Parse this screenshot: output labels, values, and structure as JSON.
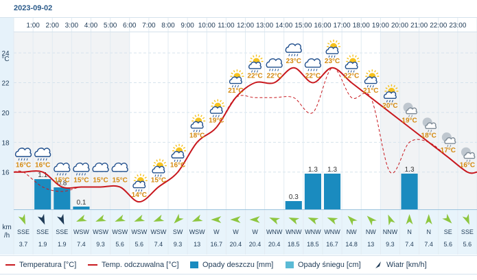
{
  "date": "2023-09-02",
  "hours": [
    "1:00",
    "2:00",
    "3:00",
    "4:00",
    "5:00",
    "6:00",
    "7:00",
    "8:00",
    "9:00",
    "10:00",
    "11:00",
    "12:00",
    "13:00",
    "14:00",
    "15:00",
    "16:00",
    "17:00",
    "18:00",
    "19:00",
    "20:00",
    "21:00",
    "22:00",
    "23:00"
  ],
  "chart_data": {
    "type": "line",
    "x": [
      0,
      1,
      2,
      3,
      4,
      5,
      6,
      7,
      8,
      9,
      10,
      11,
      12,
      13,
      14,
      15,
      16,
      17,
      18,
      19,
      20,
      21,
      22,
      23
    ],
    "unit_label": "°C",
    "y_ticks": [
      16,
      18,
      20,
      22,
      24
    ],
    "ylim": [
      13.5,
      26.4
    ],
    "series": [
      {
        "name": "Temperatura [°C]",
        "color": "#c8181e",
        "values": [
          16,
          16,
          15,
          15,
          15,
          15,
          14,
          15,
          16,
          18,
          19,
          21,
          22,
          22,
          23,
          22,
          23,
          22,
          21,
          20,
          19,
          18,
          17,
          16
        ]
      },
      {
        "name": "Temp. odczuwalna [°C]",
        "color": "#c8181e",
        "dashed": true,
        "values": [
          16,
          15,
          14.7,
          15,
          15,
          15,
          14,
          15,
          16,
          18,
          19,
          21,
          21,
          21,
          21,
          20,
          23,
          21,
          21,
          16,
          18,
          18,
          17,
          16
        ]
      }
    ],
    "temp_labels": [
      "16°C",
      "16°C",
      "15°C",
      "15°C",
      "15°C",
      "15°C",
      "14°C",
      "15°C",
      "16°C",
      "18°C",
      "19°C",
      "21°C",
      "22°C",
      "22°C",
      "23°C",
      "22°C",
      "23°C",
      "22°C",
      "21°C",
      "20°C",
      "19°C",
      "18°C",
      "17°C",
      "16°C"
    ],
    "rain": {
      "name": "Opady deszczu [mm]",
      "color": "#1a8bbf",
      "values": [
        0,
        1.1,
        0.8,
        0.1,
        0,
        0,
        0,
        0,
        0,
        0,
        0,
        0,
        0,
        0,
        0.3,
        1.3,
        1.3,
        0,
        0,
        0,
        1.3,
        0,
        0,
        0
      ],
      "labels": [
        "",
        "1.1",
        "0.8",
        "0.1",
        "",
        "",
        "",
        "",
        "",
        "",
        "",
        "",
        "",
        "",
        "0.3",
        "1.3",
        "1.3",
        "",
        "",
        "",
        "1.3",
        "",
        "",
        ""
      ]
    },
    "snow": {
      "name": "Opady śniegu [cm]",
      "color": "#5bbad5"
    }
  },
  "weather_icons": [
    "rain-cloud",
    "rain-cloud",
    "rain-cloud",
    "rain-cloud",
    "cloud",
    "cloud",
    "sun-cloud-rain",
    "sun-cloud-rain",
    "sun-cloud-rain",
    "sun-cloud-rain",
    "sun-cloud-rain",
    "sun-cloud-rain",
    "sun-cloud-rain",
    "rain-cloud",
    "rain-cloud",
    "rain-cloud",
    "sun-cloud-rain",
    "sun-cloud-rain",
    "sun-cloud-rain",
    "sun-cloud-rain",
    "moon-cloud",
    "moon-cloud",
    "moon-cloud",
    "moon-cloud"
  ],
  "wind": {
    "axis_label_1": "km",
    "axis_label_2": "/h",
    "directions": [
      "SSE",
      "SSE",
      "SSE",
      "WSW",
      "WSW",
      "WSW",
      "WSW",
      "WSW",
      "SW",
      "WSW",
      "W",
      "W",
      "W",
      "WNW",
      "WNW",
      "WNW",
      "WNW",
      "NW",
      "NW",
      "NNW",
      "N",
      "N",
      "SE",
      "SSE"
    ],
    "speeds": [
      "3.7",
      "1.9",
      "1.9",
      "7.4",
      "9.3",
      "5.6",
      "5.6",
      "7.4",
      "9.3",
      "13",
      "16.7",
      "20.4",
      "20.4",
      "20.4",
      "18.5",
      "18.5",
      "16.7",
      "14.8",
      "13",
      "9.3",
      "7.4",
      "7.4",
      "5.6",
      "5.6"
    ],
    "dark_arrows": [
      1,
      2
    ]
  },
  "legend": {
    "temp": "Temperatura [°C]",
    "feels": "Temp. odczuwalna [°C]",
    "rain": "Opady deszczu [mm]",
    "snow": "Opady śniegu [cm]",
    "wind": "Wiatr [km/h]"
  },
  "colors": {
    "grid": "#d5e2ec",
    "axis_text": "#1f3b57",
    "temp": "#c8181e",
    "rain": "#1a8bbf",
    "snow": "#5bbad5",
    "temp_label": "#d48a10",
    "wind_arrow": "#8dc63f",
    "night": "#f1f3f5"
  }
}
